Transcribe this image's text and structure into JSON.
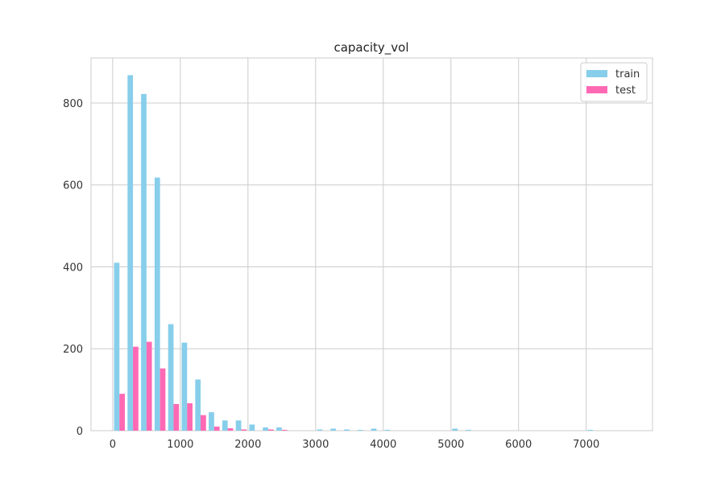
{
  "chart_data": {
    "type": "bar",
    "title": "capacity_vol",
    "xlabel": "",
    "ylabel": "",
    "xlim": [
      -320,
      7980
    ],
    "ylim": [
      0,
      910
    ],
    "x_ticks": [
      0,
      1000,
      2000,
      3000,
      4000,
      5000,
      6000,
      7000
    ],
    "y_ticks": [
      0,
      200,
      400,
      600,
      800
    ],
    "grid": true,
    "legend_position": "top-right",
    "bin_edges": [
      0,
      200,
      400,
      600,
      800,
      1000,
      1200,
      1400,
      1600,
      1800,
      2000,
      2200,
      2400,
      2600,
      2800,
      3000,
      3200,
      3400,
      3600,
      3800,
      4000,
      4200,
      4400,
      4600,
      4800,
      5000,
      5200,
      5400,
      5600,
      5800,
      6000,
      6200,
      6400,
      6600,
      6800,
      7000,
      7200,
      7400,
      7600
    ],
    "series": [
      {
        "name": "train",
        "color": "#87ceeb",
        "values": [
          410,
          868,
          822,
          618,
          260,
          215,
          125,
          45,
          25,
          25,
          15,
          8,
          8,
          0,
          0,
          3,
          5,
          3,
          2,
          5,
          2,
          0,
          0,
          0,
          0,
          5,
          2,
          0,
          0,
          0,
          0,
          0,
          0,
          0,
          0,
          2,
          0,
          0
        ]
      },
      {
        "name": "test",
        "color": "#ff69b4",
        "values": [
          90,
          205,
          217,
          152,
          65,
          67,
          38,
          10,
          6,
          3,
          0,
          3,
          2,
          0,
          0,
          0,
          0,
          0,
          0,
          0,
          0,
          0,
          0,
          0,
          0,
          0,
          0,
          0,
          0,
          0,
          0,
          0,
          0,
          0,
          0,
          0,
          0,
          0
        ]
      }
    ]
  }
}
